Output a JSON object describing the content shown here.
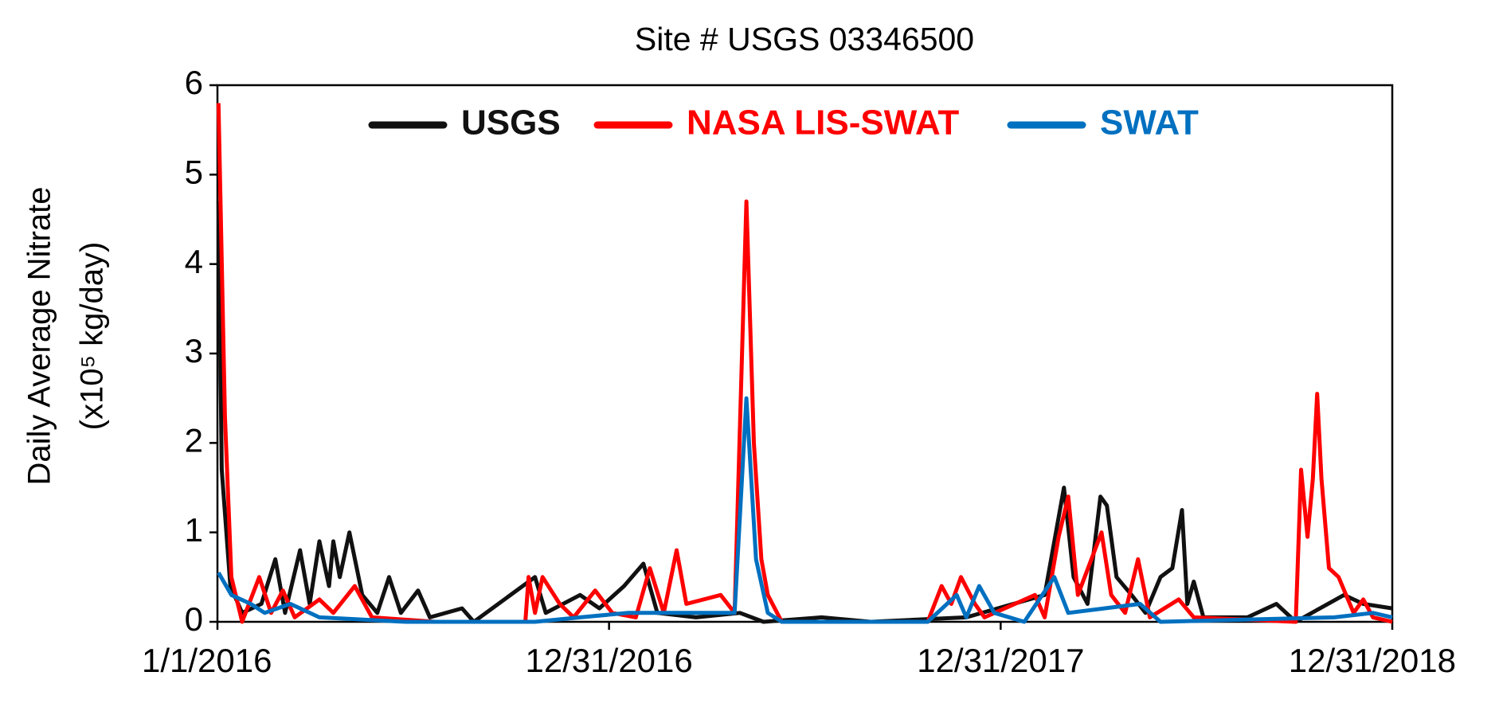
{
  "chart_data": {
    "type": "line",
    "title": "Site # USGS 03346500",
    "y_label": [
      "Daily Average Nitrate",
      "(x10⁵ kg/day)"
    ],
    "xlim": [
      "1/1/2016",
      "12/31/2018"
    ],
    "xticks": [
      "1/1/2016",
      "12/31/2016",
      "12/31/2017",
      "12/31/2018"
    ],
    "ylim": [
      0,
      6
    ],
    "yticks": [
      0,
      1,
      2,
      3,
      4,
      5,
      6
    ],
    "legend": "top",
    "series": [
      {
        "name": "USGS",
        "color": "#111111",
        "x": [
          "1/2/2016",
          "1/5/2016",
          "1/13/2016",
          "1/24/2016",
          "2/11/2016",
          "2/24/2016",
          "3/4/2016",
          "3/18/2016",
          "3/27/2016",
          "4/5/2016",
          "4/14/2016",
          "4/18/2016",
          "4/24/2016",
          "5/3/2016",
          "5/15/2016",
          "5/29/2016",
          "6/9/2016",
          "6/20/2016",
          "7/6/2016",
          "7/17/2016",
          "8/16/2016",
          "8/27/2016",
          "10/23/2016",
          "11/2/2016",
          "12/4/2016",
          "12/22/2016",
          "1/14/2017",
          "2/1/2017",
          "2/14/2017",
          "3/22/2017",
          "5/2/2017",
          "5/24/2017",
          "7/17/2017",
          "9/1/2017",
          "11/29/2017",
          "2/10/2018",
          "2/28/2018",
          "3/9/2018",
          "3/22/2018",
          "4/3/2018",
          "4/9/2018",
          "4/18/2018",
          "5/2/2018",
          "5/15/2018",
          "5/29/2018",
          "6/9/2018",
          "6/18/2018",
          "6/23/2018",
          "6/29/2018",
          "7/8/2018",
          "8/18/2018",
          "9/14/2018",
          "10/2/2018",
          "11/16/2018",
          "12/4/2018",
          "12/31/2018"
        ],
        "values": [
          4.7,
          1.7,
          0.4,
          0.1,
          0.2,
          0.7,
          0.1,
          0.8,
          0.2,
          0.9,
          0.4,
          0.9,
          0.5,
          1.0,
          0.3,
          0.1,
          0.5,
          0.1,
          0.35,
          0.05,
          0.15,
          0,
          0.5,
          0.1,
          0.3,
          0.15,
          0.4,
          0.65,
          0.1,
          0.05,
          0.1,
          0,
          0.05,
          0,
          0.05,
          0.3,
          1.5,
          0.5,
          0.2,
          1.4,
          1.3,
          0.5,
          0.3,
          0.1,
          0.5,
          0.6,
          1.25,
          0.2,
          0.45,
          0.05,
          0.05,
          0.2,
          0,
          0.3,
          0.2,
          0.15
        ]
      },
      {
        "name": "NASA LIS-SWAT",
        "color": "#ff0000",
        "x": [
          "1/2/2016",
          "1/8/2016",
          "1/14/2016",
          "1/24/2016",
          "2/9/2016",
          "2/20/2016",
          "3/2/2016",
          "3/13/2016",
          "4/5/2016",
          "4/18/2016",
          "5/8/2016",
          "5/24/2016",
          "7/22/2016",
          "10/14/2016",
          "10/17/2016",
          "10/23/2016",
          "10/30/2016",
          "11/15/2016",
          "11/28/2016",
          "12/18/2016",
          "1/3/2017",
          "1/25/2017",
          "2/7/2017",
          "2/20/2017",
          "3/4/2017",
          "3/13/2017",
          "4/14/2017",
          "4/27/2017",
          "5/8/2017",
          "5/15/2017",
          "5/22/2017",
          "5/28/2017",
          "6/10/2017",
          "10/24/2017",
          "11/6/2017",
          "11/15/2017",
          "11/24/2017",
          "12/7/2017",
          "12/16/2017",
          "2/1/2018",
          "2/10/2018",
          "2/23/2018",
          "3/4/2018",
          "3/13/2018",
          "4/4/2018",
          "4/13/2018",
          "4/26/2018",
          "5/8/2018",
          "5/19/2018",
          "6/15/2018",
          "6/29/2018",
          "10/2/2018",
          "10/7/2018",
          "10/13/2018",
          "10/18/2018",
          "10/22/2018",
          "10/26/2018",
          "11/2/2018",
          "11/11/2018",
          "11/25/2018",
          "12/4/2018",
          "12/13/2018",
          "12/31/2018"
        ],
        "values": [
          5.8,
          2.3,
          0.5,
          0,
          0.5,
          0.1,
          0.35,
          0.05,
          0.25,
          0.1,
          0.4,
          0.05,
          0,
          0,
          0.5,
          0.1,
          0.5,
          0.2,
          0.05,
          0.35,
          0.1,
          0.05,
          0.6,
          0.1,
          0.8,
          0.2,
          0.3,
          0.1,
          4.7,
          2.0,
          0.7,
          0.3,
          0,
          0,
          0.4,
          0.2,
          0.5,
          0.2,
          0.05,
          0.3,
          0.05,
          0.95,
          1.4,
          0.3,
          1.0,
          0.3,
          0.1,
          0.7,
          0.05,
          0.25,
          0.05,
          0,
          1.7,
          0.95,
          1.6,
          2.55,
          1.6,
          0.6,
          0.5,
          0.1,
          0.25,
          0.05,
          0
        ]
      },
      {
        "name": "SWAT",
        "color": "#0070c0",
        "x": [
          "1/2/2016",
          "1/14/2016",
          "2/1/2016",
          "2/14/2016",
          "3/9/2016",
          "4/5/2016",
          "6/25/2016",
          "10/23/2016",
          "12/4/2016",
          "1/18/2017",
          "3/6/2017",
          "4/27/2017",
          "5/8/2017",
          "5/17/2017",
          "5/28/2017",
          "6/10/2017",
          "10/24/2017",
          "11/20/2017",
          "11/29/2017",
          "12/11/2017",
          "12/25/2017",
          "1/22/2018",
          "2/19/2018",
          "3/4/2018",
          "5/10/2018",
          "5/29/2018",
          "11/7/2018",
          "12/13/2018",
          "12/31/2018"
        ],
        "values": [
          0.55,
          0.3,
          0.2,
          0.1,
          0.2,
          0.05,
          0,
          0,
          0.05,
          0.1,
          0.1,
          0.1,
          2.5,
          0.7,
          0.1,
          0,
          0,
          0.3,
          0.05,
          0.4,
          0.1,
          0,
          0.5,
          0.1,
          0.2,
          0,
          0.05,
          0.1,
          0.05
        ]
      }
    ]
  }
}
